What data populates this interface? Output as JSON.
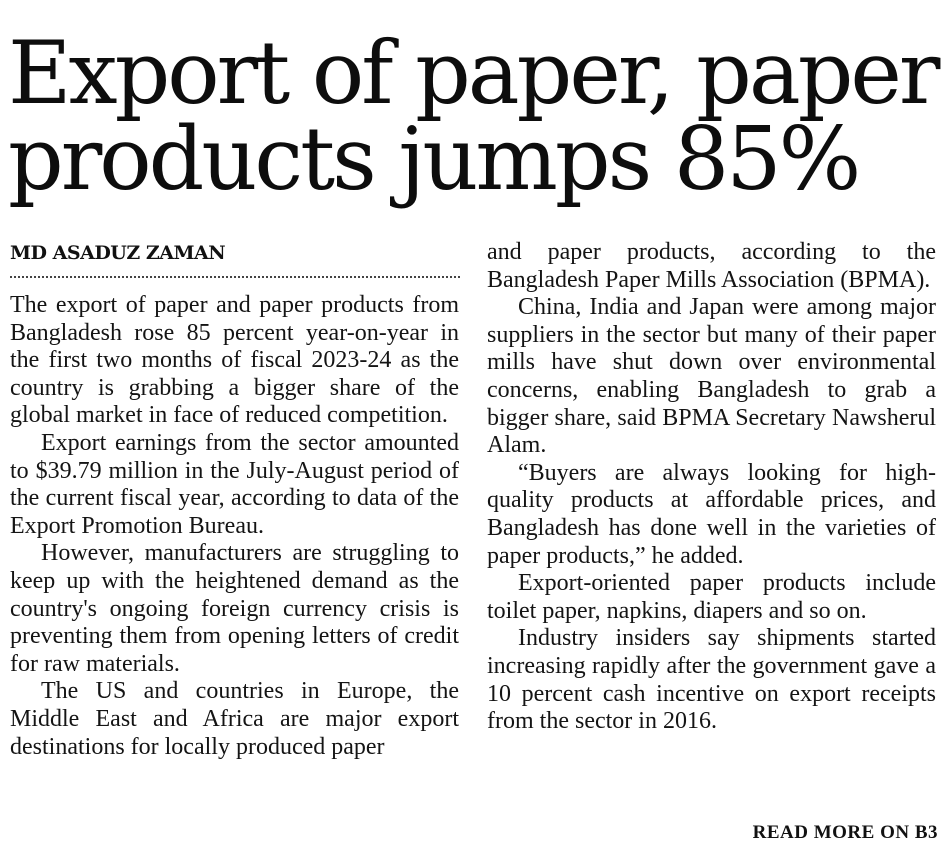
{
  "article": {
    "headline_line1": "Export of paper, paper",
    "headline_line2": "products jumps 85%",
    "byline": "MD ASADUZ ZAMAN",
    "column1": [
      "The export of paper and paper products from Bangladesh rose 85 percent year-on-year in the first two months of fiscal 2023-24 as the country is grabbing a bigger share of the global market in face of reduced competition.",
      "Export earnings from the sector amounted to $39.79 million in the July-August period of the current fiscal year, according to data of the Export Promotion Bureau.",
      "However, manufacturers are struggling to keep up with the heightened demand as the country's ongoing foreign currency crisis is preventing them from opening letters of credit for raw materials.",
      "The US and countries in Europe, the Middle East and Africa are major export destinations for locally produced paper"
    ],
    "column2": [
      "and paper products, according to the Bangladesh Paper Mills Association (BPMA).",
      "China, India and Japan were among major suppliers in the sector but many of their paper mills have shut down over environmental concerns, enabling Bangladesh to grab a bigger share, said BPMA Secretary Nawsherul Alam.",
      "“Buyers are always looking for high-quality products at affordable prices, and Bangladesh has done well in the varieties of paper products,” he added.",
      "Export-oriented paper products include toilet paper, napkins, diapers and so on.",
      "Industry insiders say shipments started increasing rapidly after the government gave a 10 percent cash incentive on export receipts from the sector in 2016."
    ],
    "read_more": "READ MORE ON B3"
  }
}
